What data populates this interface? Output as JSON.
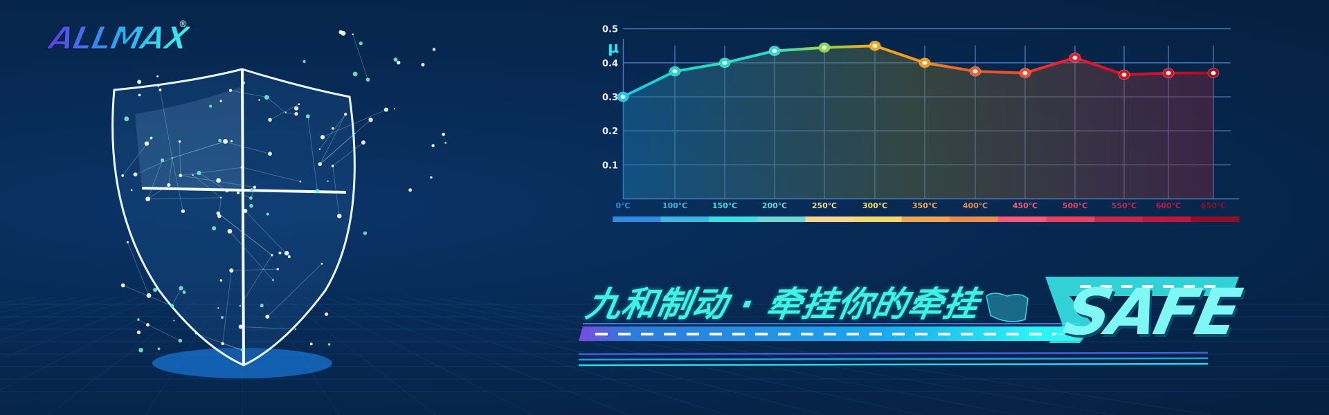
{
  "brand": {
    "logo": "ALLMAX",
    "registered": "®"
  },
  "slogan": "九和制动 · 牵挂你的牵挂",
  "safe_word": "SAFE",
  "chart_data": {
    "type": "line",
    "ylabel": "μ",
    "ylim": [
      0,
      0.6
    ],
    "yticks": [
      "0.1",
      "0.2",
      "0.3",
      "0.4",
      "0.5",
      "0.6"
    ],
    "categories": [
      "0℃",
      "100℃",
      "150℃",
      "200℃",
      "250℃",
      "300℃",
      "350℃",
      "400℃",
      "450℃",
      "500℃",
      "550℃",
      "600℃",
      "650℃"
    ],
    "values": [
      0.3,
      0.375,
      0.4,
      0.435,
      0.445,
      0.45,
      0.4,
      0.375,
      0.37,
      0.415,
      0.365,
      0.37,
      0.37
    ],
    "point_colors": [
      "#19c8f0",
      "#19d8c8",
      "#22e0c0",
      "#2ed8d8",
      "#8ad848",
      "#f0a818",
      "#f09818",
      "#f05a28",
      "#f04a28",
      "#f01828",
      "#d81020",
      "#d01020",
      "#a00c18"
    ],
    "scale_colors": [
      "#2f8ce0",
      "#3bb8e0",
      "#36e0e4",
      "#70d6d0",
      "#f8d690",
      "#fad86a",
      "#f0a650",
      "#ea8c50",
      "#fa5878",
      "#ec4058",
      "#c82848",
      "#c0183c",
      "#8e1028"
    ],
    "grid": true
  }
}
